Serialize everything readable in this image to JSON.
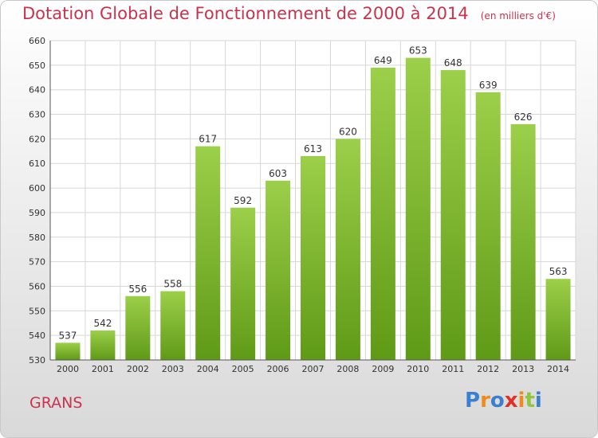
{
  "header": {
    "title": "Dotation Globale de Fonctionnement de 2000 à 2014",
    "subtitle": "(en milliers d'€)"
  },
  "commune": {
    "name": "GRANS"
  },
  "brand": {
    "letters": [
      "P",
      "r",
      "o",
      "x",
      "i",
      "t",
      "i"
    ],
    "colors": [
      "#3a7fd0",
      "#f08a1c",
      "#3a7fd0",
      "#e0302a",
      "#f08a1c",
      "#8dc63f",
      "#3a7fd0"
    ]
  },
  "colors": {
    "bar_light": "#9ccf4a",
    "bar_dark": "#5f9a17",
    "grid": "#d6d6d6",
    "title": "#c8334d"
  },
  "chart_data": {
    "type": "bar",
    "title": "Dotation Globale de Fonctionnement de 2000 à 2014",
    "subtitle": "(en milliers d'€)",
    "categories": [
      "2000",
      "2001",
      "2002",
      "2003",
      "2004",
      "2005",
      "2006",
      "2007",
      "2008",
      "2009",
      "2010",
      "2011",
      "2012",
      "2013",
      "2014"
    ],
    "values": [
      537,
      542,
      556,
      558,
      617,
      592,
      603,
      613,
      620,
      649,
      653,
      648,
      639,
      626,
      563
    ],
    "ylim": [
      530,
      660
    ],
    "yticks": [
      530,
      540,
      550,
      560,
      570,
      580,
      590,
      600,
      610,
      620,
      630,
      640,
      650,
      660
    ],
    "grid": true,
    "legend": "none"
  }
}
